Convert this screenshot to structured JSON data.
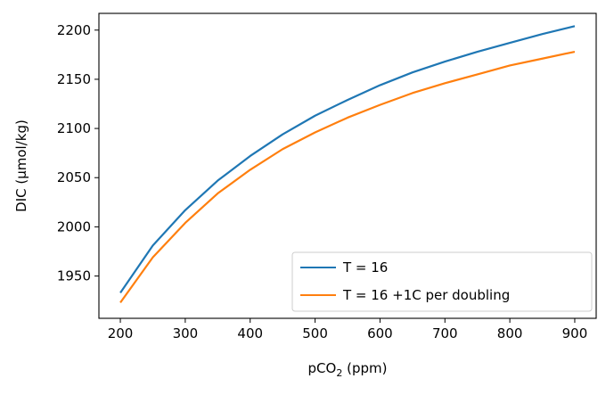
{
  "chart_data": {
    "type": "line",
    "xlabel": "pCO",
    "xlabel_sub": "2",
    "xlabel_suffix": " (ppm)",
    "ylabel": "DIC (µmol/kg)",
    "xlim": [
      167,
      933
    ],
    "ylim": [
      1907,
      2217
    ],
    "xticks": [
      200,
      300,
      400,
      500,
      600,
      700,
      800,
      900
    ],
    "yticks": [
      1950,
      2000,
      2050,
      2100,
      2150,
      2200
    ],
    "grid": false,
    "legend_position": "lower-right",
    "x": [
      200,
      250,
      300,
      350,
      400,
      450,
      500,
      550,
      600,
      650,
      700,
      750,
      800,
      850,
      900
    ],
    "series": [
      {
        "name": "T = 16",
        "color": "#1f77b4",
        "values": [
          1933,
          1981,
          2017,
          2047,
          2072,
          2094,
          2113,
          2129,
          2144,
          2157,
          2168,
          2178,
          2187,
          2196,
          2204
        ]
      },
      {
        "name": "T = 16 +1C per doubling",
        "color": "#ff7f0e",
        "values": [
          1923,
          1969,
          2004,
          2034,
          2058,
          2079,
          2096,
          2111,
          2124,
          2136,
          2146,
          2155,
          2164,
          2171,
          2178
        ]
      }
    ]
  }
}
